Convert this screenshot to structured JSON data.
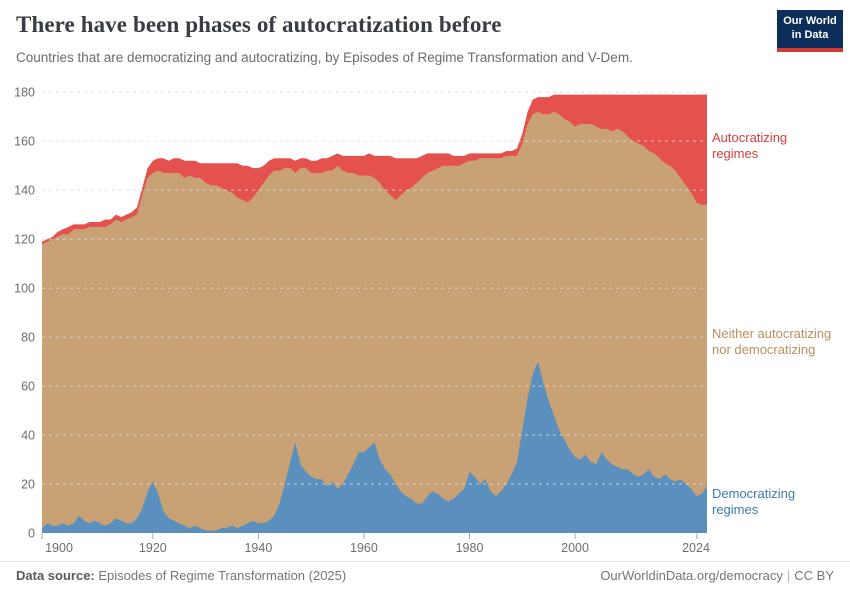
{
  "header": {
    "title": "There have been phases of autocratization before",
    "subtitle": "Countries that are democratizing and autocratizing, by Episodes of Regime Transformation and V-Dem.",
    "logo": {
      "line1": "Our World",
      "line2": "in Data"
    }
  },
  "chart_data": {
    "type": "area",
    "stacked": true,
    "title": "There have been phases of autocratization before",
    "xlabel": "",
    "ylabel": "",
    "ylim": [
      0,
      180
    ],
    "xlim": [
      1899,
      2025
    ],
    "grid": "horizontal dashed",
    "legend_position": "right outside, colored text labels",
    "y_ticks": [
      0,
      20,
      40,
      60,
      80,
      100,
      120,
      140,
      160,
      180
    ],
    "x_tick_labels": [
      "1900",
      "1920",
      "1940",
      "1960",
      "1980",
      "2000",
      "2024"
    ],
    "x": [
      1899,
      1900,
      1901,
      1902,
      1903,
      1904,
      1905,
      1906,
      1907,
      1908,
      1909,
      1910,
      1911,
      1912,
      1913,
      1914,
      1915,
      1916,
      1917,
      1918,
      1919,
      1920,
      1921,
      1922,
      1923,
      1924,
      1925,
      1926,
      1927,
      1928,
      1929,
      1930,
      1931,
      1932,
      1933,
      1934,
      1935,
      1936,
      1937,
      1938,
      1939,
      1940,
      1941,
      1942,
      1943,
      1944,
      1945,
      1946,
      1947,
      1948,
      1949,
      1950,
      1951,
      1952,
      1953,
      1954,
      1955,
      1956,
      1957,
      1958,
      1959,
      1960,
      1961,
      1962,
      1963,
      1964,
      1965,
      1966,
      1967,
      1968,
      1969,
      1970,
      1971,
      1972,
      1973,
      1974,
      1975,
      1976,
      1977,
      1978,
      1979,
      1980,
      1981,
      1982,
      1983,
      1984,
      1985,
      1986,
      1987,
      1988,
      1989,
      1990,
      1991,
      1992,
      1993,
      1994,
      1995,
      1996,
      1997,
      1998,
      1999,
      2000,
      2001,
      2002,
      2003,
      2004,
      2005,
      2006,
      2007,
      2008,
      2009,
      2010,
      2011,
      2012,
      2013,
      2014,
      2015,
      2016,
      2017,
      2018,
      2019,
      2020,
      2021,
      2022,
      2023,
      2024,
      2025
    ],
    "series": [
      {
        "name": "Democratizing regimes",
        "color": "#5a8fbe",
        "label_color": "#3b7bb2",
        "values": [
          2,
          4,
          3,
          3,
          4,
          3,
          4,
          7,
          5,
          4,
          5,
          4,
          3,
          4,
          6,
          5,
          4,
          4,
          6,
          10,
          17,
          21,
          16,
          9,
          6,
          5,
          4,
          3,
          2,
          3,
          2,
          1,
          1,
          1,
          2,
          2,
          3,
          2,
          3,
          4,
          5,
          4,
          4,
          5,
          7,
          12,
          20,
          29,
          37,
          28,
          25,
          23,
          22,
          22,
          19,
          21,
          18,
          20,
          24,
          28,
          33,
          33,
          35,
          37,
          30,
          26,
          24,
          20,
          17,
          15,
          14,
          12,
          12,
          15,
          17,
          16,
          14,
          13,
          14,
          16,
          18,
          25,
          23,
          20,
          22,
          17,
          15,
          17,
          20,
          24,
          29,
          42,
          55,
          65,
          70,
          61,
          54,
          48,
          42,
          38,
          34,
          31,
          30,
          32,
          29,
          28,
          33,
          30,
          28,
          27,
          26,
          26,
          24,
          23,
          24,
          26,
          23,
          22,
          24,
          22,
          21,
          22,
          20,
          18,
          15,
          16,
          19
        ]
      },
      {
        "name": "Neither autocratizing nor democratizing",
        "color": "#c8a274",
        "label_color": "#bb8e58",
        "values": [
          116,
          115,
          117,
          118,
          118,
          119,
          120,
          117,
          119,
          121,
          120,
          121,
          122,
          122,
          122,
          122,
          124,
          125,
          124,
          128,
          128,
          126,
          132,
          138,
          141,
          142,
          143,
          142,
          144,
          142,
          143,
          142,
          141,
          141,
          139,
          138,
          136,
          135,
          133,
          131,
          132,
          136,
          139,
          141,
          141,
          136,
          129,
          120,
          110,
          121,
          124,
          124,
          125,
          125,
          129,
          127,
          132,
          128,
          123,
          119,
          113,
          113,
          111,
          108,
          113,
          114,
          114,
          116,
          121,
          125,
          127,
          131,
          133,
          132,
          131,
          133,
          136,
          137,
          136,
          134,
          133,
          127,
          129,
          133,
          131,
          136,
          138,
          136,
          134,
          130,
          125,
          117,
          112,
          106,
          102,
          110,
          117,
          124,
          129,
          131,
          134,
          135,
          137,
          135,
          138,
          138,
          132,
          135,
          136,
          138,
          138,
          136,
          136,
          136,
          134,
          130,
          132,
          131,
          127,
          128,
          127,
          123,
          122,
          121,
          120,
          118,
          115
        ]
      },
      {
        "name": "Autocratizing regimes",
        "color": "#e5524d",
        "label_color": "#d63e3b",
        "values": [
          1,
          1,
          1,
          2,
          2,
          3,
          2,
          2,
          2,
          2,
          2,
          2,
          3,
          2,
          2,
          2,
          2,
          2,
          3,
          3,
          4,
          5,
          5,
          6,
          5,
          6,
          6,
          7,
          6,
          7,
          6,
          8,
          9,
          9,
          10,
          11,
          12,
          14,
          14,
          15,
          12,
          9,
          7,
          6,
          5,
          5,
          4,
          4,
          5,
          4,
          4,
          5,
          5,
          6,
          5,
          6,
          5,
          6,
          7,
          7,
          8,
          8,
          9,
          9,
          11,
          14,
          16,
          17,
          15,
          13,
          12,
          10,
          9,
          8,
          7,
          6,
          5,
          5,
          4,
          4,
          3,
          3,
          3,
          2,
          2,
          2,
          2,
          2,
          2,
          2,
          3,
          4,
          5,
          6,
          6,
          7,
          7,
          7,
          8,
          10,
          11,
          13,
          12,
          12,
          12,
          13,
          14,
          14,
          15,
          14,
          15,
          17,
          19,
          20,
          21,
          23,
          24,
          26,
          28,
          29,
          31,
          34,
          37,
          40,
          44,
          45,
          45
        ]
      }
    ]
  },
  "footer": {
    "datasource_label": "Data source:",
    "datasource_value": "Episodes of Regime Transformation (2025)",
    "url": "OurWorldinData.org/democracy",
    "separator": "|",
    "license": "CC BY"
  }
}
